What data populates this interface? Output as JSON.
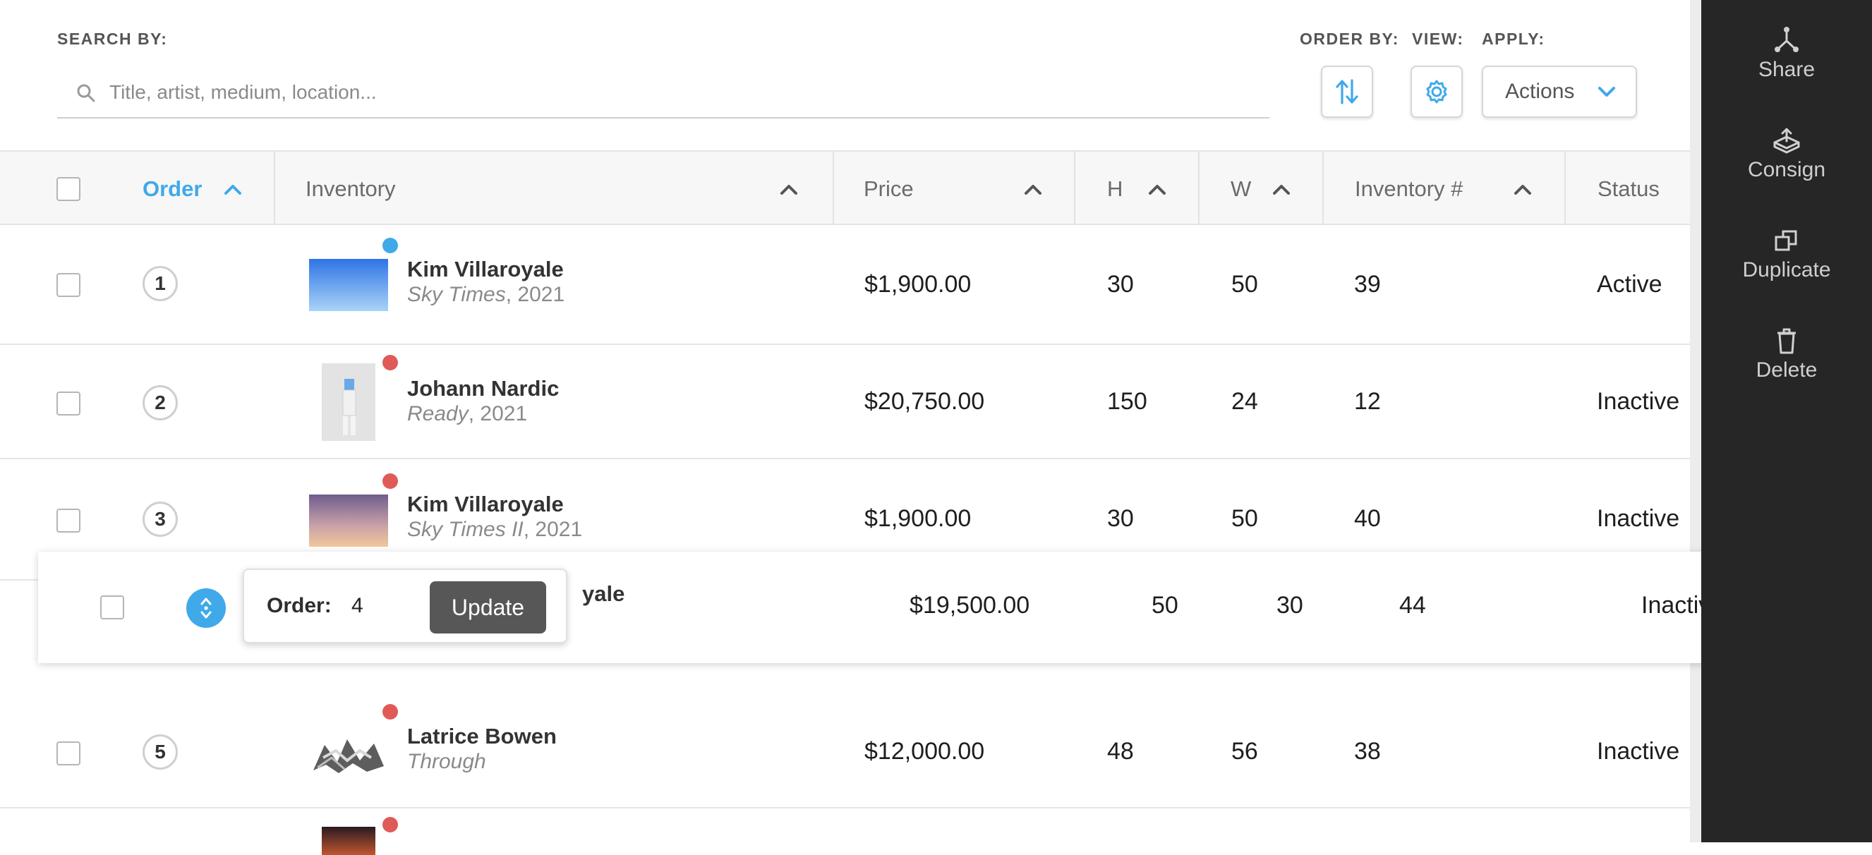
{
  "toolbar": {
    "search_by_label": "SEARCH BY:",
    "search_placeholder": "Title, artist, medium, location...",
    "order_by_label": "ORDER BY:",
    "view_label": "VIEW:",
    "apply_label": "APPLY:",
    "actions_label": "Actions"
  },
  "table": {
    "headers": {
      "order": "Order",
      "inventory": "Inventory",
      "price": "Price",
      "h": "H",
      "w": "W",
      "inventory_num": "Inventory #",
      "status": "Status"
    },
    "rows": [
      {
        "order": "1",
        "artist": "Kim Villaroyale",
        "title": "Sky Times",
        "year": ", 2021",
        "price": "$1,900.00",
        "h": "30",
        "w": "50",
        "inv": "39",
        "status": "Active",
        "dot_color": "#3fa9ea"
      },
      {
        "order": "2",
        "artist": "Johann Nardic",
        "title": "Ready",
        "year": ", 2021",
        "price": "$20,750.00",
        "h": "150",
        "w": "24",
        "inv": "12",
        "status": "Inactive",
        "dot_color": "#e05a57"
      },
      {
        "order": "3",
        "artist": "Kim Villaroyale",
        "title": "Sky Times II",
        "year": ", 2021",
        "price": "$1,900.00",
        "h": "30",
        "w": "50",
        "inv": "40",
        "status": "Inactive",
        "dot_color": "#e05a57"
      },
      {
        "order": "4",
        "artist_partial": "yale",
        "price": "$19,500.00",
        "h": "50",
        "w": "30",
        "inv": "44",
        "status": "Inactive",
        "dot_color": "#e05a57"
      },
      {
        "order": "5",
        "artist": "Latrice Bowen",
        "title": "Through",
        "year": "",
        "price": "$12,000.00",
        "h": "48",
        "w": "56",
        "inv": "38",
        "status": "Inactive",
        "dot_color": "#e05a57"
      }
    ]
  },
  "order_popup": {
    "label": "Order:",
    "value": "4",
    "update_label": "Update"
  },
  "panel": {
    "items": [
      {
        "label": "Share",
        "icon": "share-icon"
      },
      {
        "label": "Consign",
        "icon": "consign-icon"
      },
      {
        "label": "Duplicate",
        "icon": "duplicate-icon"
      },
      {
        "label": "Delete",
        "icon": "trash-icon"
      }
    ]
  },
  "colors": {
    "accent": "#3fa9ea",
    "dot_red": "#e05a57",
    "panel_bg": "#262626"
  }
}
